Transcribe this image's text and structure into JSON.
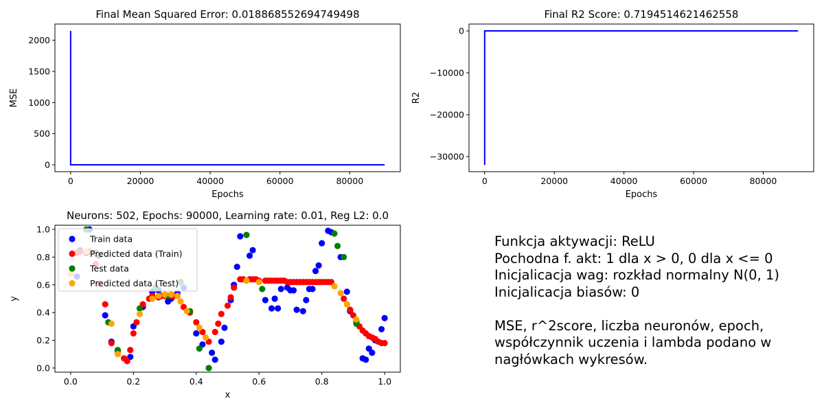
{
  "chart_data": [
    {
      "type": "line",
      "title": "Final Mean Squared Error: 0.018868552694749498",
      "xlabel": "Epochs",
      "ylabel": "MSE",
      "xlim": [
        -4500,
        94500
      ],
      "ylim": [
        -110,
        2260
      ],
      "xticks": [
        0,
        20000,
        40000,
        60000,
        80000
      ],
      "xtick_labels": [
        "0",
        "20000",
        "40000",
        "60000",
        "80000"
      ],
      "yticks": [
        0,
        500,
        1000,
        1500,
        2000
      ],
      "ytick_labels": [
        "0",
        "500",
        "1000",
        "1500",
        "2000"
      ],
      "grid": false,
      "color": "#0000ff",
      "series": [
        {
          "x": [
            0,
            1,
            90000
          ],
          "y": [
            2150,
            0.02,
            0.0189
          ]
        }
      ]
    },
    {
      "type": "line",
      "title": "Final R2 Score: 0.7194514621462558",
      "xlabel": "Epochs",
      "ylabel": "R2",
      "xlim": [
        -4500,
        94500
      ],
      "ylim": [
        -33600,
        1650
      ],
      "xticks": [
        0,
        20000,
        40000,
        60000,
        80000
      ],
      "xtick_labels": [
        "0",
        "20000",
        "40000",
        "60000",
        "80000"
      ],
      "yticks": [
        0,
        -10000,
        -20000,
        -30000
      ],
      "ytick_labels": [
        "0",
        "−10000",
        "−20000",
        "−30000"
      ],
      "grid": false,
      "color": "#0000ff",
      "series": [
        {
          "x": [
            0,
            1,
            90000
          ],
          "y": [
            -32000,
            0.5,
            0.7195
          ]
        }
      ]
    },
    {
      "type": "scatter",
      "title": "Neurons: 502, Epochs: 90000, Learning rate: 0.01, Reg L2: 0.0",
      "xlabel": "x",
      "ylabel": "y",
      "xlim": [
        -0.05,
        1.05
      ],
      "ylim": [
        -0.03,
        1.03
      ],
      "xticks": [
        0,
        0.2,
        0.4,
        0.6,
        0.8,
        1.0
      ],
      "xtick_labels": [
        "0.0",
        "0.2",
        "0.4",
        "0.6",
        "0.8",
        "1.0"
      ],
      "yticks": [
        0,
        0.2,
        0.4,
        0.6,
        0.8,
        1.0
      ],
      "ytick_labels": [
        "0.0",
        "0.2",
        "0.4",
        "0.6",
        "0.8",
        "1.0"
      ],
      "grid": false,
      "legend_position": "top-left",
      "series": [
        {
          "name": "Train data",
          "color": "#0000ff",
          "x": [
            0.0,
            0.02,
            0.03,
            0.05,
            0.06,
            0.08,
            0.09,
            0.11,
            0.13,
            0.19,
            0.2,
            0.23,
            0.26,
            0.28,
            0.31,
            0.32,
            0.34,
            0.36,
            0.4,
            0.42,
            0.45,
            0.46,
            0.48,
            0.49,
            0.51,
            0.52,
            0.53,
            0.54,
            0.57,
            0.58,
            0.62,
            0.64,
            0.65,
            0.66,
            0.67,
            0.69,
            0.7,
            0.71,
            0.72,
            0.74,
            0.75,
            0.76,
            0.77,
            0.78,
            0.79,
            0.8,
            0.82,
            0.83,
            0.86,
            0.88,
            0.89,
            0.91,
            0.93,
            0.94,
            0.95,
            0.96,
            0.97,
            0.99,
            1.0
          ],
          "y": [
            0.68,
            0.66,
            0.85,
            0.83,
            1.0,
            0.83,
            0.81,
            0.38,
            0.19,
            0.08,
            0.3,
            0.44,
            0.55,
            0.56,
            0.48,
            0.5,
            0.54,
            0.58,
            0.25,
            0.17,
            0.11,
            0.06,
            0.19,
            0.29,
            0.49,
            0.6,
            0.73,
            0.95,
            0.81,
            0.85,
            0.49,
            0.43,
            0.5,
            0.43,
            0.57,
            0.58,
            0.56,
            0.56,
            0.42,
            0.41,
            0.49,
            0.57,
            0.57,
            0.7,
            0.74,
            0.9,
            0.99,
            0.98,
            0.8,
            0.55,
            0.41,
            0.33,
            0.07,
            0.06,
            0.14,
            0.11,
            0.2,
            0.28,
            0.36
          ]
        },
        {
          "name": "Predicted data (Train)",
          "color": "#ff0000",
          "x": [
            0.02,
            0.03,
            0.05,
            0.06,
            0.08,
            0.09,
            0.11,
            0.13,
            0.15,
            0.17,
            0.18,
            0.19,
            0.2,
            0.21,
            0.23,
            0.25,
            0.26,
            0.28,
            0.29,
            0.3,
            0.31,
            0.32,
            0.33,
            0.34,
            0.36,
            0.38,
            0.4,
            0.42,
            0.44,
            0.46,
            0.47,
            0.48,
            0.5,
            0.51,
            0.52,
            0.54,
            0.55,
            0.57,
            0.58,
            0.59,
            0.6,
            0.62,
            0.63,
            0.64,
            0.65,
            0.66,
            0.67,
            0.68,
            0.69,
            0.7,
            0.71,
            0.72,
            0.73,
            0.74,
            0.75,
            0.76,
            0.77,
            0.78,
            0.79,
            0.8,
            0.81,
            0.82,
            0.83,
            0.87,
            0.89,
            0.9,
            0.91,
            0.92,
            0.93,
            0.94,
            0.95,
            0.96,
            0.97,
            0.98,
            0.99,
            1.0
          ],
          "y": [
            0.83,
            0.84,
            0.84,
            0.84,
            0.75,
            0.61,
            0.46,
            0.18,
            0.12,
            0.07,
            0.05,
            0.13,
            0.25,
            0.33,
            0.46,
            0.5,
            0.52,
            0.51,
            0.52,
            0.52,
            0.52,
            0.52,
            0.52,
            0.52,
            0.44,
            0.4,
            0.33,
            0.26,
            0.19,
            0.26,
            0.32,
            0.39,
            0.45,
            0.51,
            0.58,
            0.64,
            0.64,
            0.64,
            0.64,
            0.64,
            0.63,
            0.63,
            0.63,
            0.63,
            0.63,
            0.63,
            0.63,
            0.63,
            0.62,
            0.62,
            0.62,
            0.62,
            0.62,
            0.62,
            0.62,
            0.62,
            0.62,
            0.62,
            0.62,
            0.62,
            0.62,
            0.62,
            0.62,
            0.5,
            0.42,
            0.38,
            0.34,
            0.3,
            0.27,
            0.25,
            0.23,
            0.22,
            0.21,
            0.19,
            0.18,
            0.18
          ]
        },
        {
          "name": "Test data",
          "color": "#008000",
          "x": [
            0.05,
            0.12,
            0.15,
            0.22,
            0.27,
            0.31,
            0.35,
            0.38,
            0.41,
            0.44,
            0.56,
            0.61,
            0.84,
            0.85,
            0.87,
            0.91
          ],
          "y": [
            1.0,
            0.33,
            0.13,
            0.43,
            0.58,
            0.52,
            0.62,
            0.41,
            0.14,
            0.0,
            0.96,
            0.57,
            0.97,
            0.88,
            0.8,
            0.32
          ]
        },
        {
          "name": "Predicted data (Test)",
          "color": "#ffa500",
          "x": [
            0.0,
            0.05,
            0.08,
            0.13,
            0.15,
            0.22,
            0.26,
            0.28,
            0.3,
            0.32,
            0.34,
            0.35,
            0.37,
            0.41,
            0.43,
            0.56,
            0.6,
            0.84,
            0.86,
            0.88,
            0.91
          ],
          "y": [
            0.68,
            0.84,
            0.82,
            0.32,
            0.1,
            0.39,
            0.5,
            0.52,
            0.53,
            0.53,
            0.52,
            0.48,
            0.41,
            0.29,
            0.22,
            0.63,
            0.62,
            0.59,
            0.54,
            0.46,
            0.35
          ]
        }
      ]
    }
  ],
  "note": {
    "lines": [
      "Funkcja aktywacji: ReLU",
      "Pochodna f. akt: 1 dla x > 0, 0 dla x <= 0",
      "Inicjalicacja wag: rozkład normalny N(0, 1)",
      "Inicjalicacja biasów: 0",
      "",
      "MSE, r^2score, liczba neuronów, epoch,",
      "współczynnik uczenia i lambda podano w",
      "nagłówkach wykresów."
    ]
  }
}
